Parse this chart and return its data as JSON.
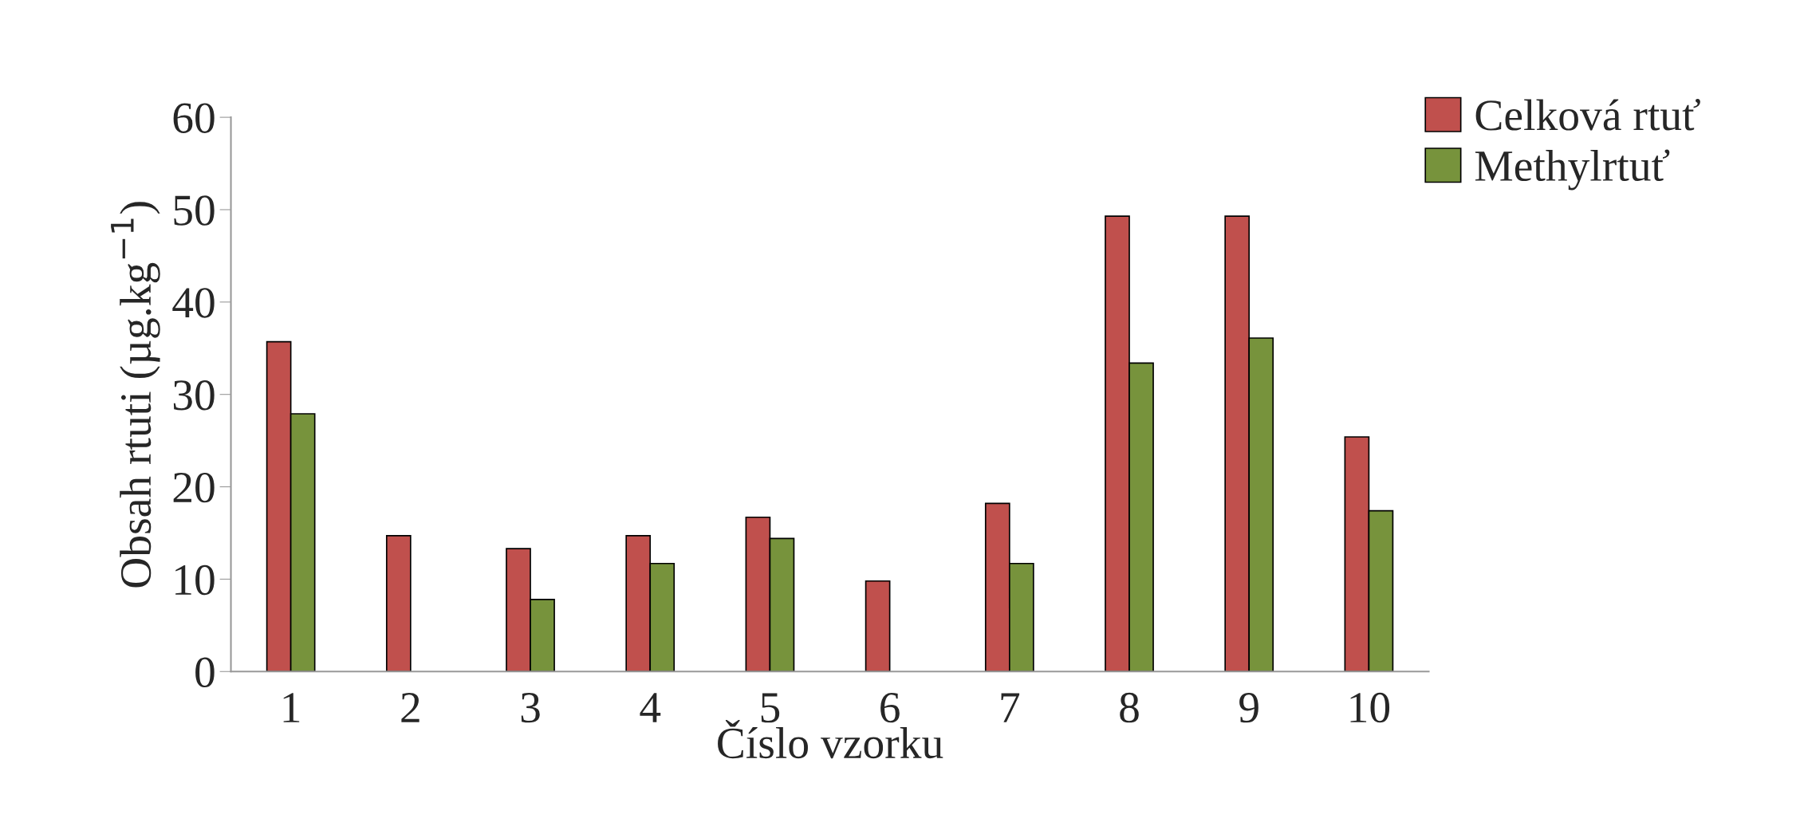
{
  "chart_data": {
    "type": "bar",
    "xlabel": "Číslo vzorku",
    "ylabel": "Obsah rtuti (µg.kg$^{−1}$)",
    "categories": [
      "1",
      "2",
      "3",
      "4",
      "5",
      "6",
      "7",
      "8",
      "9",
      "10"
    ],
    "series": [
      {
        "name": "Celková rtuť",
        "color": "#c0504d",
        "values": [
          35.7,
          14.7,
          13.3,
          14.7,
          16.7,
          9.8,
          18.2,
          49.3,
          49.3,
          25.4
        ]
      },
      {
        "name": "Methylrtuť",
        "color": "#77933c",
        "values": [
          27.9,
          null,
          7.8,
          11.7,
          14.4,
          null,
          11.7,
          33.4,
          36.1,
          17.4
        ]
      }
    ],
    "ylim": [
      0,
      60
    ],
    "yticks": [
      0,
      10,
      20,
      30,
      40,
      50,
      60
    ],
    "grid": false,
    "legend": "top right"
  }
}
